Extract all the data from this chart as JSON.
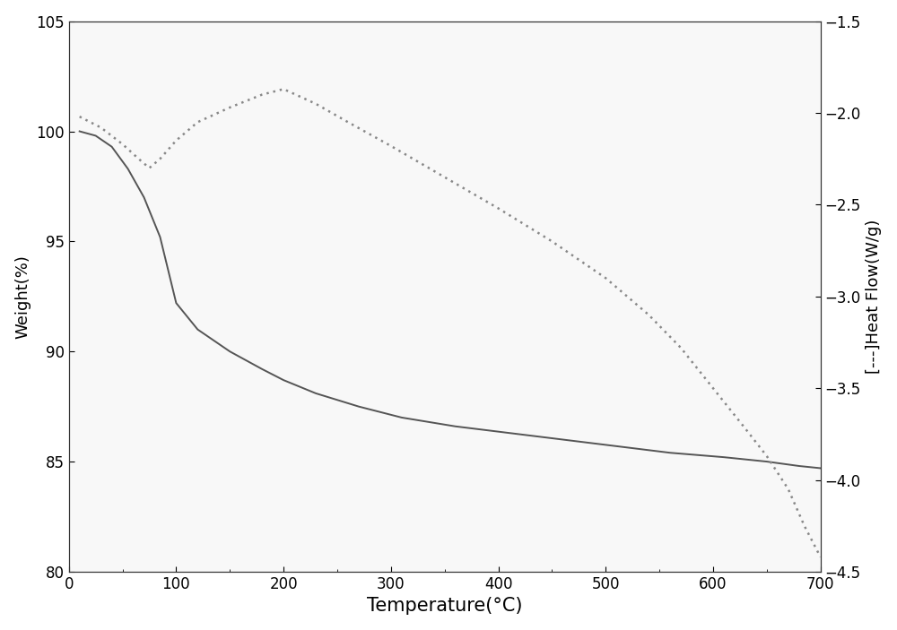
{
  "tga_x": [
    10,
    25,
    40,
    55,
    70,
    85,
    100,
    120,
    150,
    180,
    200,
    230,
    270,
    310,
    360,
    410,
    460,
    510,
    560,
    610,
    650,
    680,
    700
  ],
  "tga_y": [
    100.0,
    99.8,
    99.3,
    98.3,
    97.0,
    95.2,
    92.2,
    91.0,
    90.0,
    89.2,
    88.7,
    88.1,
    87.5,
    87.0,
    86.6,
    86.3,
    86.0,
    85.7,
    85.4,
    85.2,
    85.0,
    84.8,
    84.7
  ],
  "dsc_x": [
    10,
    30,
    50,
    65,
    75,
    85,
    100,
    120,
    150,
    180,
    200,
    230,
    260,
    300,
    350,
    400,
    450,
    500,
    540,
    570,
    600,
    630,
    650,
    670,
    685,
    700
  ],
  "dsc_y": [
    -2.02,
    -2.08,
    -2.17,
    -2.25,
    -2.3,
    -2.25,
    -2.15,
    -2.05,
    -1.97,
    -1.9,
    -1.87,
    -1.95,
    -2.05,
    -2.18,
    -2.35,
    -2.52,
    -2.7,
    -2.9,
    -3.1,
    -3.28,
    -3.5,
    -3.72,
    -3.87,
    -4.05,
    -4.25,
    -4.42
  ],
  "tga_color": "#555555",
  "dsc_color": "#888888",
  "tga_linewidth": 1.4,
  "dsc_linewidth": 1.2,
  "xlim": [
    0,
    700
  ],
  "ylim_left": [
    80,
    105
  ],
  "ylim_right": [
    -4.5,
    -1.5
  ],
  "yticks_left": [
    80,
    85,
    90,
    95,
    100,
    105
  ],
  "yticks_right": [
    -4.5,
    -4.0,
    -3.5,
    -3.0,
    -2.5,
    -2.0,
    -1.5
  ],
  "xticks": [
    0,
    100,
    200,
    300,
    400,
    500,
    600,
    700
  ],
  "xlabel": "Temperature(°C)",
  "ylabel_left": "Weight(%)",
  "ylabel_right": "[---]Heat Flow(W/g)",
  "background_color": "#ffffff",
  "plot_bg_color": "#f8f8f8",
  "xlabel_fontsize": 15,
  "ylabel_fontsize": 13,
  "tick_fontsize": 12
}
